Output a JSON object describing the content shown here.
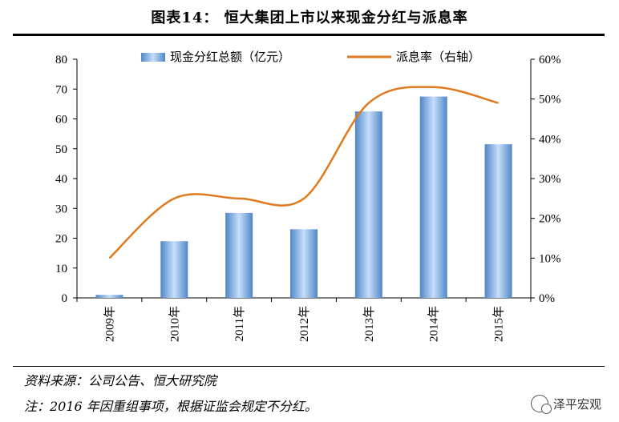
{
  "header": {
    "title": "图表14：  恒大集团上市以来现金分红与派息率"
  },
  "footer": {
    "source": "资料来源：公司公告、恒大研究院",
    "note": "注：2016 年因重组事项，根据证监会规定不分红。",
    "brand": "泽平宏观",
    "brand_icon": "wechat-icon"
  },
  "colors": {
    "bar": "#7fb2e5",
    "bar_dark": "#4f87c7",
    "line": "#e07a1f"
  },
  "chart_data": {
    "type": "bar",
    "categories": [
      "2009年",
      "2010年",
      "2011年",
      "2012年",
      "2013年",
      "2014年",
      "2015年"
    ],
    "series": [
      {
        "name": "现金分红总额（亿元）",
        "type": "bar",
        "axis": "left",
        "values": [
          1,
          19,
          28.5,
          23,
          62.5,
          67.5,
          51.5
        ]
      },
      {
        "name": "派息率（右轴）",
        "type": "line",
        "axis": "right",
        "values": [
          0.1,
          0.25,
          0.25,
          0.25,
          0.49,
          0.53,
          0.49
        ]
      }
    ],
    "y_left": {
      "min": 0,
      "max": 80,
      "ticks": [
        "0",
        "10",
        "20",
        "30",
        "40",
        "50",
        "60",
        "70",
        "80"
      ]
    },
    "y_right": {
      "min": 0,
      "max": 0.6,
      "ticks": [
        "0%",
        "10%",
        "20%",
        "30%",
        "40%",
        "50%",
        "60%"
      ]
    },
    "legend_position": "top-center",
    "grid": false
  }
}
